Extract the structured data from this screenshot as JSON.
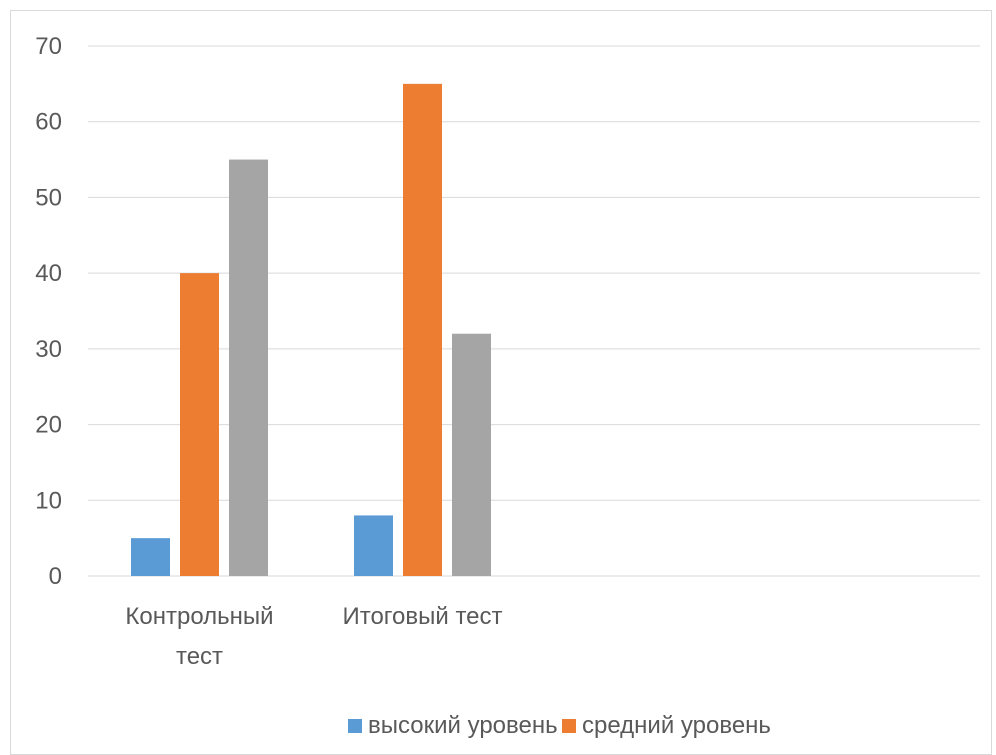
{
  "chart_data": {
    "type": "bar",
    "categories": [
      [
        "Контрольный",
        "тест"
      ],
      [
        "Итоговый тест"
      ],
      [],
      []
    ],
    "series": [
      {
        "name": "высокий уровень",
        "color": "#5b9bd5",
        "values": [
          5,
          8,
          null,
          null
        ]
      },
      {
        "name": "средний уровень",
        "color": "#ed7d31",
        "values": [
          40,
          65,
          null,
          null
        ]
      },
      {
        "name": "",
        "color": "#a5a5a5",
        "values": [
          55,
          32,
          null,
          null
        ]
      }
    ],
    "ylim": [
      0,
      70
    ],
    "yticks": [
      0,
      10,
      20,
      30,
      40,
      50,
      60,
      70
    ],
    "grid": true,
    "legend_position": "bottom",
    "title": "",
    "xlabel": "",
    "ylabel": ""
  },
  "colors": {
    "gridline": "#d9d9d9",
    "axis": "#d9d9d9",
    "text": "#595959"
  }
}
